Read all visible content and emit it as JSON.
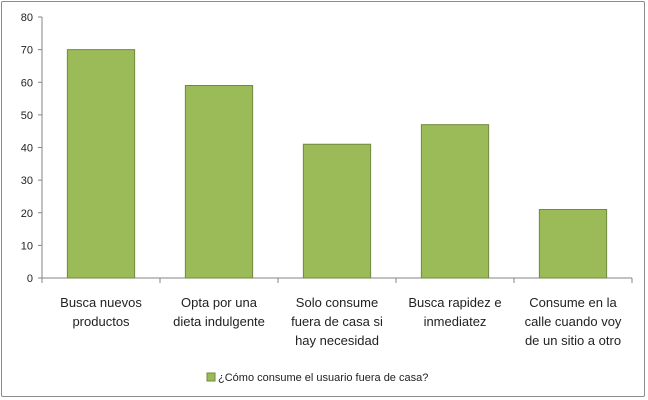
{
  "chart_data": {
    "type": "bar",
    "categories": [
      [
        "Busca nuevos",
        "productos"
      ],
      [
        "Opta por una",
        "dieta indulgente"
      ],
      [
        "Solo consume",
        "fuera de casa si",
        "hay necesidad"
      ],
      [
        "Busca rapidez e",
        "inmediatez"
      ],
      [
        "Consume en la",
        "calle cuando voy",
        "de un sitio a otro"
      ]
    ],
    "series": [
      {
        "name": "¿Cómo consume el usuario fuera de casa?",
        "values": [
          70,
          59,
          41,
          47,
          21
        ]
      }
    ],
    "ylim": [
      0,
      80
    ],
    "yticks": [
      0,
      10,
      20,
      30,
      40,
      50,
      60,
      70,
      80
    ],
    "grid": false,
    "legend_position": "bottom",
    "colors": {
      "bar_fill": "#9bbb59",
      "bar_stroke": "#71893f",
      "axis": "#868686",
      "text": "#222222"
    }
  }
}
